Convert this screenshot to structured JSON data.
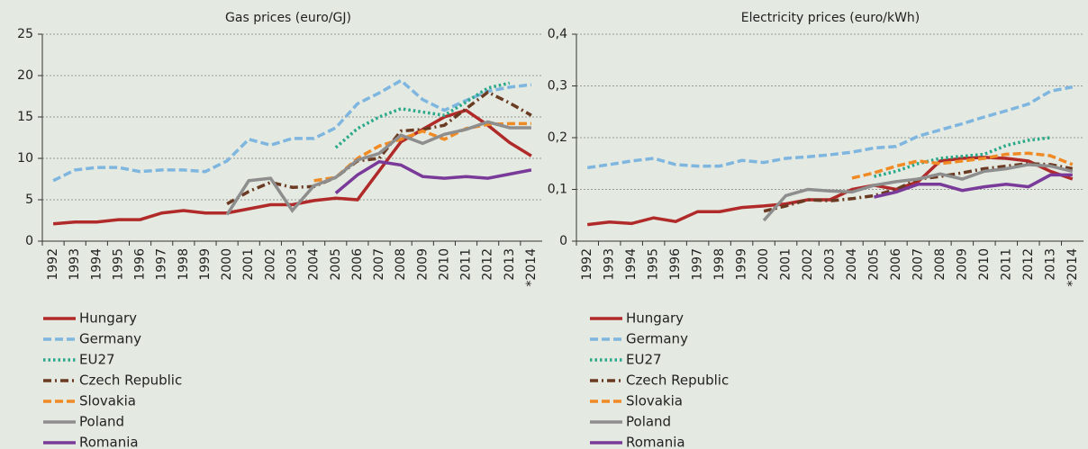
{
  "chart_data": [
    {
      "type": "line",
      "title": "Gas prices (euro/GJ)",
      "categories": [
        "1992",
        "1993",
        "1994",
        "1995",
        "1996",
        "1997",
        "1998",
        "1999",
        "2000",
        "2001",
        "2002",
        "2003",
        "2004",
        "2005",
        "2006",
        "2007",
        "2008",
        "2009",
        "2010",
        "2011",
        "2012",
        "2013",
        "*2014"
      ],
      "ylim": [
        0,
        25
      ],
      "yticks": [
        0,
        5,
        10,
        15,
        20,
        25
      ],
      "grid": true,
      "series": [
        {
          "name": "Hungary",
          "color": "#b12a2a",
          "dash": "solid",
          "values": [
            2.1,
            2.3,
            2.3,
            2.6,
            2.6,
            3.4,
            3.7,
            3.4,
            3.4,
            3.9,
            4.4,
            4.4,
            4.9,
            5.2,
            5.0,
            8.5,
            12.0,
            13.5,
            15.0,
            15.8,
            14.0,
            11.9,
            10.3
          ]
        },
        {
          "name": "Germany",
          "color": "#7fb6e0",
          "dash": "dashed",
          "values": [
            7.3,
            8.6,
            8.9,
            8.9,
            8.4,
            8.6,
            8.6,
            8.4,
            9.7,
            12.3,
            11.6,
            12.4,
            12.4,
            13.7,
            16.6,
            17.9,
            19.4,
            17.1,
            15.8,
            17.0,
            18.1,
            18.6,
            18.9
          ]
        },
        {
          "name": "EU27",
          "color": "#2aa88a",
          "dash": "dotted",
          "values": [
            null,
            null,
            null,
            null,
            null,
            null,
            null,
            null,
            null,
            null,
            null,
            null,
            null,
            11.3,
            13.6,
            15.0,
            16.0,
            15.6,
            15.2,
            16.8,
            18.5,
            19.1,
            null
          ]
        },
        {
          "name": "Czech Republic",
          "color": "#6b3a22",
          "dash": "dash-dot",
          "values": [
            null,
            null,
            null,
            null,
            null,
            null,
            null,
            null,
            4.5,
            6.0,
            7.1,
            6.5,
            6.6,
            7.7,
            9.7,
            10.0,
            13.3,
            13.5,
            14.0,
            16.0,
            18.0,
            16.7,
            15.2
          ]
        },
        {
          "name": "Slovakia",
          "color": "#f08a24",
          "dash": "dashed",
          "values": [
            null,
            null,
            null,
            null,
            null,
            null,
            null,
            null,
            null,
            null,
            null,
            null,
            7.3,
            7.7,
            10.0,
            11.5,
            12.3,
            13.3,
            12.3,
            13.6,
            14.1,
            14.2,
            14.2
          ]
        },
        {
          "name": "Poland",
          "color": "#8e8e8e",
          "dash": "solid",
          "values": [
            null,
            null,
            null,
            null,
            null,
            null,
            null,
            null,
            3.2,
            7.3,
            7.6,
            3.7,
            6.7,
            7.7,
            9.8,
            10.6,
            12.8,
            11.8,
            12.9,
            13.5,
            14.4,
            13.7,
            13.7
          ]
        },
        {
          "name": "Romania",
          "color": "#7a3a9a",
          "dash": "solid",
          "values": [
            null,
            null,
            null,
            null,
            null,
            null,
            null,
            null,
            null,
            null,
            null,
            null,
            null,
            5.8,
            8.0,
            9.6,
            9.2,
            7.8,
            7.6,
            7.8,
            7.6,
            8.1,
            8.6
          ]
        }
      ]
    },
    {
      "type": "line",
      "title": "Electricity prices (euro/kWh)",
      "categories": [
        "1992",
        "1993",
        "1994",
        "1995",
        "1996",
        "1997",
        "1998",
        "1999",
        "2000",
        "2001",
        "2002",
        "2003",
        "2004",
        "2005",
        "2006",
        "2007",
        "2008",
        "2009",
        "2010",
        "2011",
        "2012",
        "2013",
        "*2014"
      ],
      "ylim": [
        0,
        0.4
      ],
      "yticks": [
        0,
        {
          "value": 0.1,
          "label": "0,1"
        },
        {
          "value": 0.2,
          "label": "0,2"
        },
        {
          "value": 0.3,
          "label": "0,3"
        },
        {
          "value": 0.4,
          "label": "0,4"
        }
      ],
      "grid": true,
      "series": [
        {
          "name": "Hungary",
          "color": "#b12a2a",
          "dash": "solid",
          "values": [
            0.032,
            0.037,
            0.034,
            0.045,
            0.038,
            0.057,
            0.057,
            0.065,
            0.068,
            0.072,
            0.08,
            0.08,
            0.1,
            0.108,
            0.1,
            0.115,
            0.155,
            0.16,
            0.162,
            0.16,
            0.155,
            0.135,
            0.12
          ]
        },
        {
          "name": "Germany",
          "color": "#7fb6e0",
          "dash": "dashed",
          "values": [
            0.142,
            0.148,
            0.155,
            0.16,
            0.148,
            0.145,
            0.145,
            0.156,
            0.152,
            0.16,
            0.163,
            0.167,
            0.172,
            0.18,
            0.183,
            0.203,
            0.215,
            0.227,
            0.24,
            0.252,
            0.265,
            0.29,
            0.298
          ]
        },
        {
          "name": "EU27",
          "color": "#2aa88a",
          "dash": "dotted",
          "values": [
            null,
            null,
            null,
            null,
            null,
            null,
            null,
            null,
            null,
            null,
            null,
            null,
            null,
            0.125,
            0.135,
            0.15,
            0.16,
            0.164,
            0.168,
            0.185,
            0.195,
            0.2,
            null
          ]
        },
        {
          "name": "Czech Republic",
          "color": "#6b3a22",
          "dash": "dash-dot",
          "values": [
            null,
            null,
            null,
            null,
            null,
            null,
            null,
            null,
            0.058,
            0.068,
            0.08,
            0.078,
            0.082,
            0.088,
            0.1,
            0.12,
            0.125,
            0.132,
            0.14,
            0.145,
            0.15,
            0.148,
            0.14
          ]
        },
        {
          "name": "Slovakia",
          "color": "#f08a24",
          "dash": "dashed",
          "values": [
            null,
            null,
            null,
            null,
            null,
            null,
            null,
            null,
            null,
            null,
            null,
            null,
            0.122,
            0.132,
            0.145,
            0.155,
            0.15,
            0.155,
            0.16,
            0.168,
            0.17,
            0.165,
            0.148
          ]
        },
        {
          "name": "Poland",
          "color": "#8e8e8e",
          "dash": "solid",
          "values": [
            null,
            null,
            null,
            null,
            null,
            null,
            null,
            null,
            0.04,
            0.088,
            0.1,
            0.097,
            0.095,
            0.108,
            0.115,
            0.12,
            0.13,
            0.12,
            0.135,
            0.14,
            0.148,
            0.145,
            0.135
          ]
        },
        {
          "name": "Romania",
          "color": "#7a3a9a",
          "dash": "solid",
          "values": [
            null,
            null,
            null,
            null,
            null,
            null,
            null,
            null,
            null,
            null,
            null,
            null,
            null,
            0.085,
            0.095,
            0.11,
            0.11,
            0.098,
            0.105,
            0.11,
            0.105,
            0.128,
            0.128
          ]
        }
      ]
    }
  ]
}
